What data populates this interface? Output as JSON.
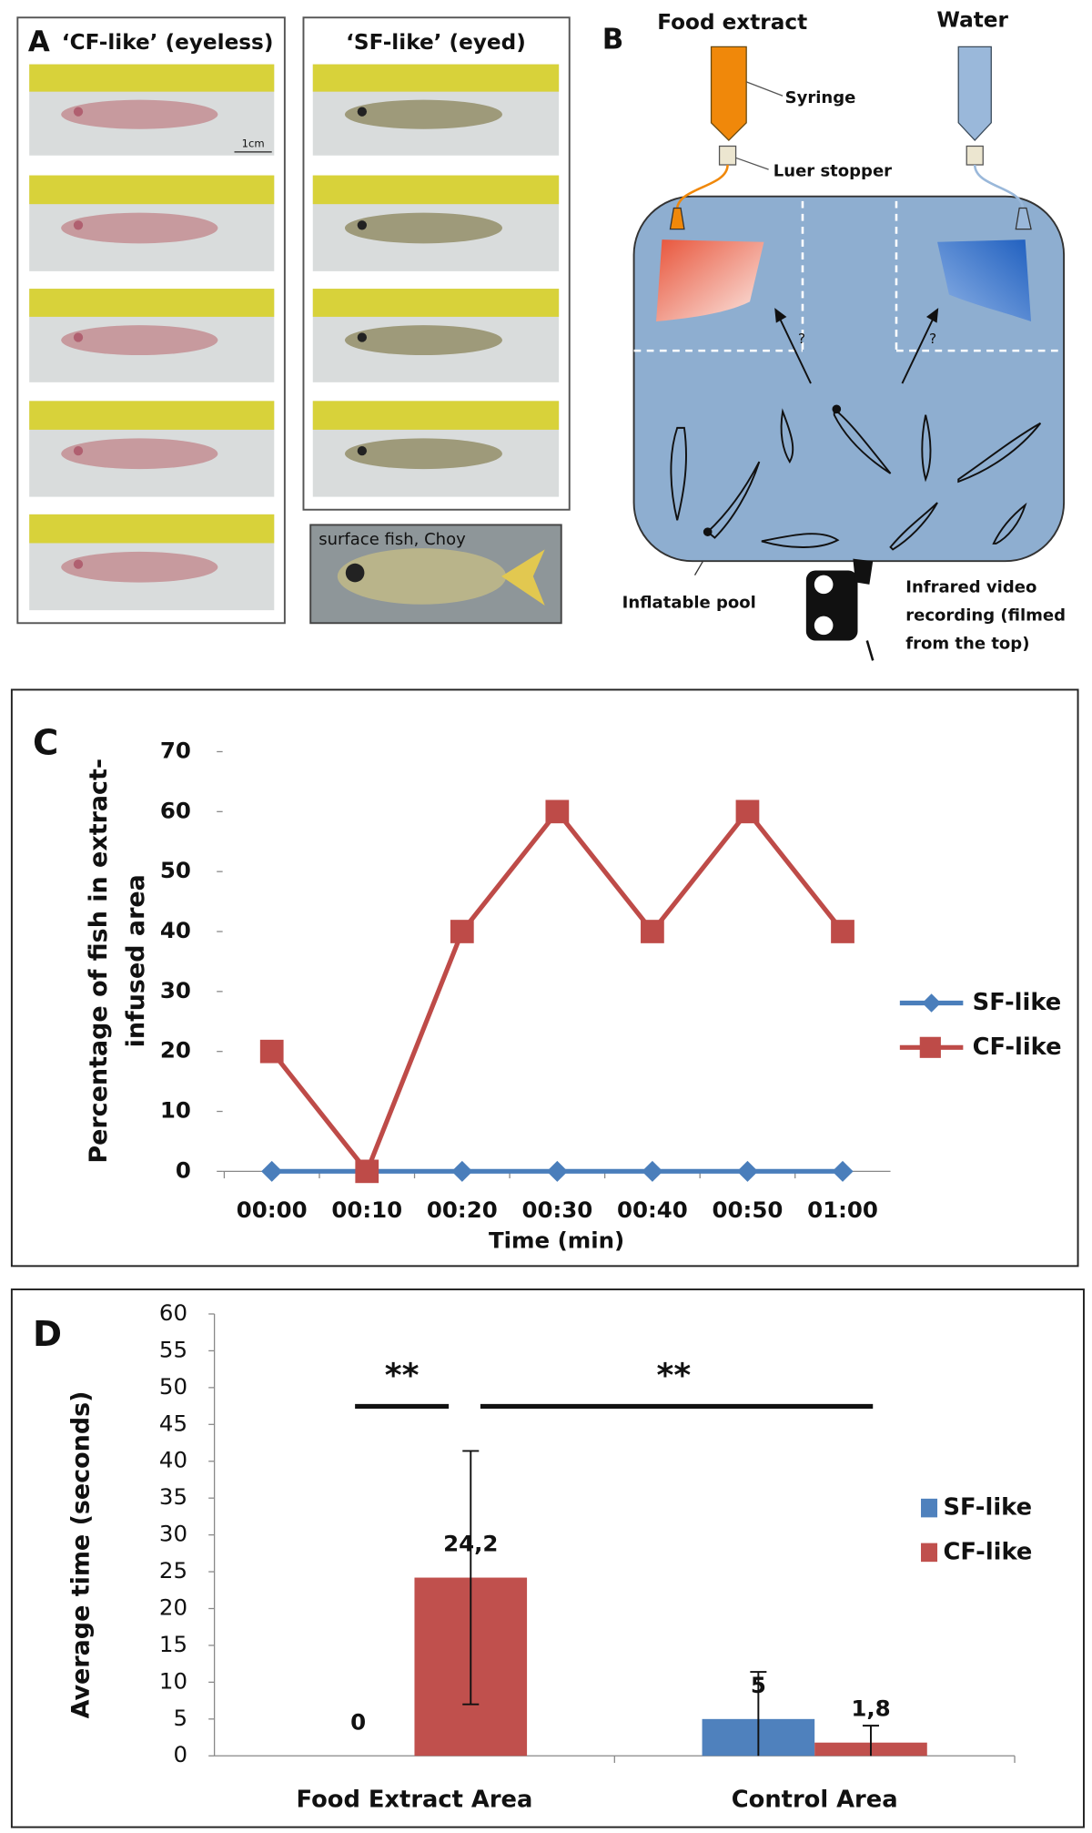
{
  "panel_a": {
    "label": "A",
    "left_title": "‘CF-like’ (eyeless)",
    "right_title": "‘SF-like’ (eyed)",
    "scale": "1cm",
    "choy_caption": "surface fish, Choy"
  },
  "panel_b": {
    "label": "B",
    "food": "Food extract",
    "water": "Water",
    "syringe": "Syringe",
    "stopper": "Luer stopper",
    "question": "?",
    "pool": "Inflatable pool",
    "camera": [
      "Infrared video",
      "recording (filmed",
      "from the top)"
    ]
  },
  "chart_data": [
    {
      "type": "line",
      "panel_label": "C",
      "categories": [
        "00:00",
        "00:10",
        "00:20",
        "00:30",
        "00:40",
        "00:50",
        "01:00"
      ],
      "series": [
        {
          "name": "SF-like",
          "color": "#4a7ebb",
          "marker": "diamond",
          "values": [
            0,
            0,
            0,
            0,
            0,
            0,
            0
          ]
        },
        {
          "name": "CF-like",
          "color": "#be4b48",
          "marker": "square",
          "values": [
            20,
            0,
            40,
            60,
            40,
            60,
            40
          ]
        }
      ],
      "ylim": [
        0,
        70
      ],
      "yticks": [
        0,
        10,
        20,
        30,
        40,
        50,
        60,
        70
      ],
      "x_label": "Time (min)",
      "y_label": [
        "Percentage of fish in extract-",
        "infused area"
      ],
      "legend": "right"
    },
    {
      "type": "bar",
      "panel_label": "D",
      "categories": [
        "Food Extract Area",
        "Control Area"
      ],
      "series": [
        {
          "name": "SF-like",
          "color": "#4f81bd",
          "values": [
            0,
            5
          ],
          "value_labels": [
            "0",
            "5"
          ],
          "errors": [
            null,
            6.4
          ]
        },
        {
          "name": "CF-like",
          "color": "#c0504d",
          "values": [
            24.2,
            1.8
          ],
          "value_labels": [
            "24,2",
            "1,8"
          ],
          "errors": [
            17.2,
            2.3
          ]
        }
      ],
      "ylim": [
        0,
        60
      ],
      "yticks": [
        0,
        5,
        10,
        15,
        20,
        25,
        30,
        35,
        40,
        45,
        50,
        55,
        60
      ],
      "y_label": "Average time (seconds)",
      "annotations": [
        "**",
        "**"
      ],
      "legend": "right"
    }
  ]
}
